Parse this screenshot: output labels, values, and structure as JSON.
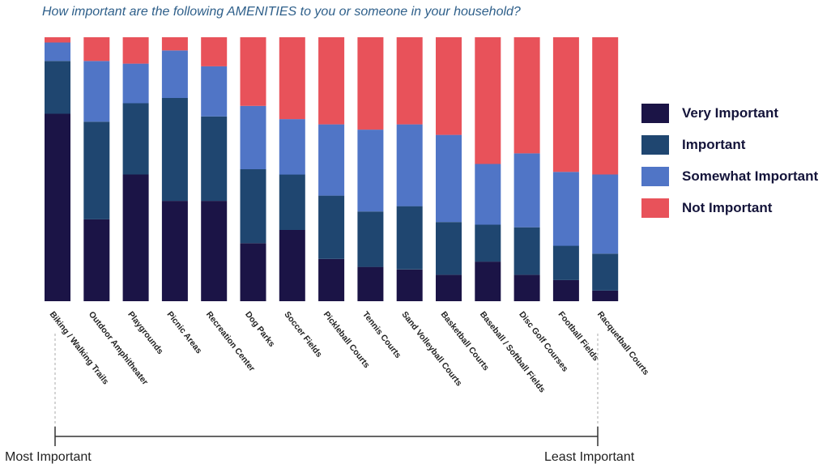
{
  "chart_data": {
    "type": "bar",
    "stacked": true,
    "percent_stacked": true,
    "title": "How important are the following AMENITIES to you or someone in your household?",
    "categories": [
      "Biking / Walking Trails",
      "Outdoor Amphitheater",
      "Playgrounds",
      "Picnic Areas",
      "Recreation Center",
      "Dog Parks",
      "Soccer Fields",
      "Pickleball Courts",
      "Tennis Courts",
      "Sand Volleyball Courts",
      "Basketball Courts",
      "Baseball / Softball Fields",
      "Disc Golf Courses",
      "Football Fields",
      "Racquetball Courts"
    ],
    "series": [
      {
        "name": "Very Important",
        "color": "#1b1446",
        "values": [
          71,
          31,
          48,
          38,
          38,
          22,
          27,
          16,
          13,
          12,
          10,
          15,
          10,
          8,
          4
        ]
      },
      {
        "name": "Important",
        "color": "#1f4670",
        "values": [
          20,
          37,
          27,
          39,
          32,
          28,
          21,
          24,
          21,
          24,
          20,
          14,
          18,
          13,
          14
        ]
      },
      {
        "name": "Somewhat Important",
        "color": "#5075c6",
        "values": [
          7,
          23,
          15,
          18,
          19,
          24,
          21,
          27,
          31,
          31,
          33,
          23,
          28,
          28,
          30
        ]
      },
      {
        "name": "Not Important",
        "color": "#e8525a",
        "values": [
          2,
          9,
          10,
          5,
          11,
          26,
          31,
          33,
          35,
          33,
          37,
          48,
          44,
          51,
          52
        ]
      }
    ],
    "ylim": [
      0,
      100
    ],
    "grid": false,
    "legend_position": "right",
    "scale_labels": {
      "left": "Most Important",
      "right": "Least Important"
    }
  }
}
